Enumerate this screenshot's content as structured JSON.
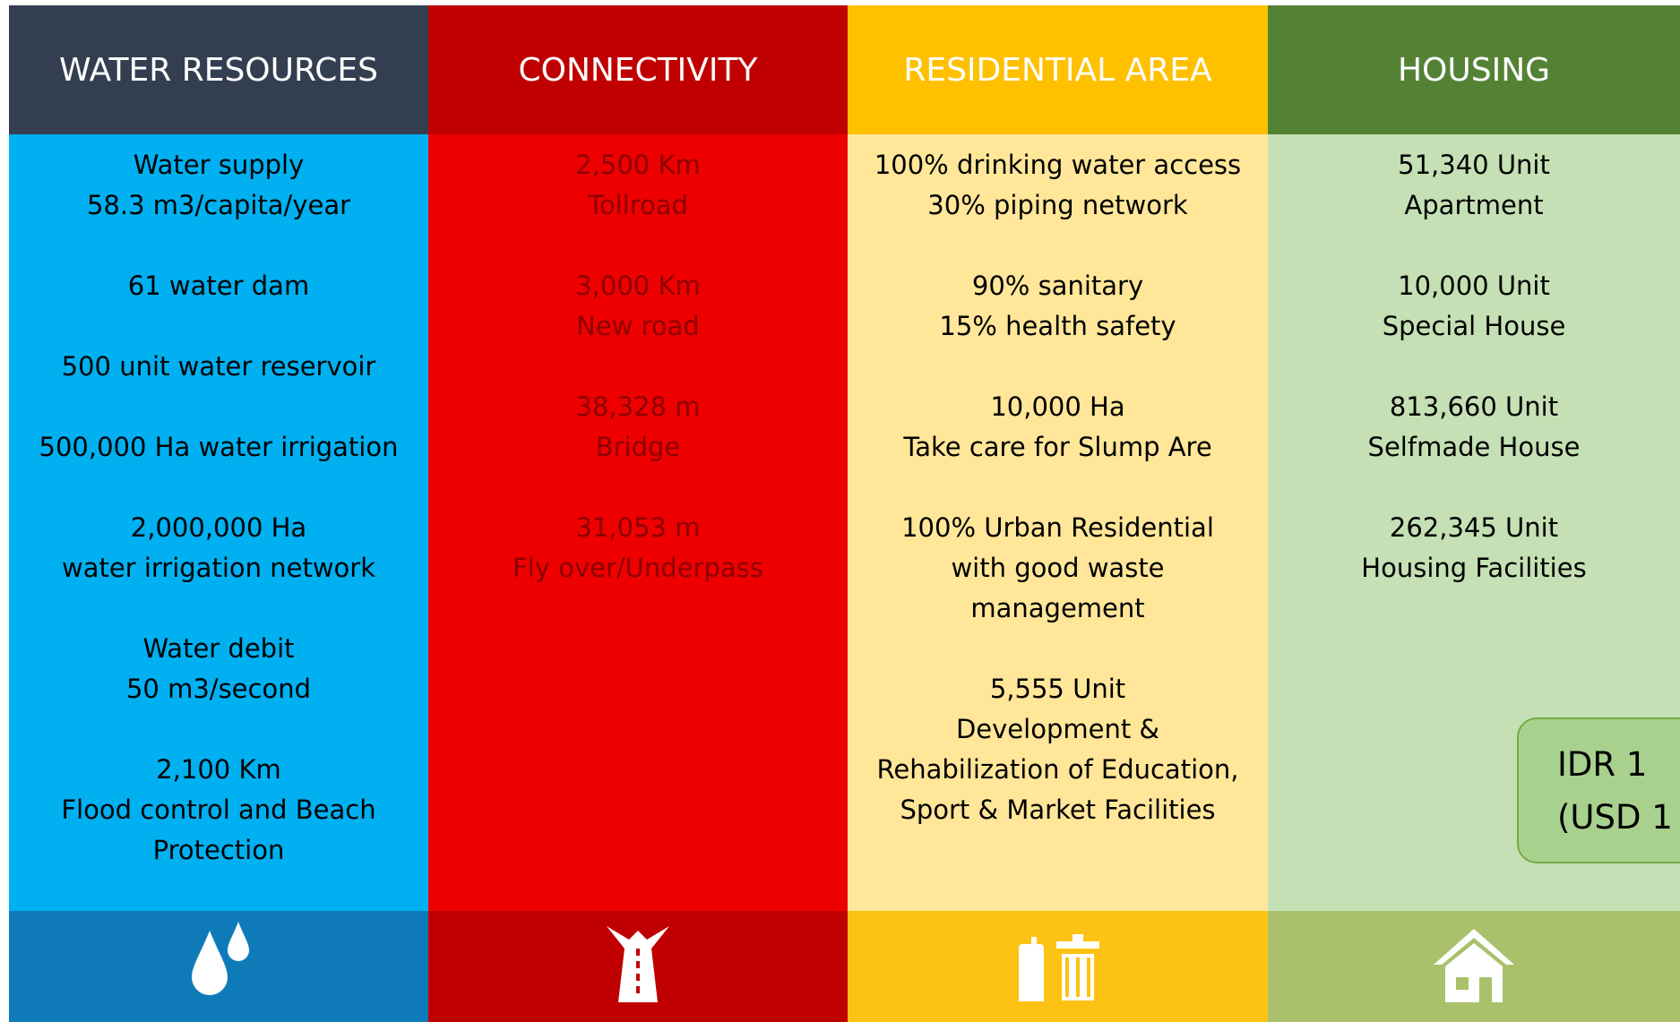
{
  "columns": [
    {
      "title": "WATER RESOURCES",
      "items": [
        [
          "Water supply",
          "58.3 m3/capita/year"
        ],
        [
          "61 water dam"
        ],
        [
          "500 unit water reservoir"
        ],
        [
          "500,000 Ha water irrigation"
        ],
        [
          "2,000,000 Ha",
          "water irrigation network"
        ],
        [
          "Water debit",
          "50 m3/second"
        ],
        [
          "2,100 Km",
          "Flood control and Beach",
          "Protection"
        ]
      ]
    },
    {
      "title": "CONNECTIVITY",
      "items": [
        [
          "2,500 Km",
          "Tollroad"
        ],
        [
          "3,000 Km",
          "New road"
        ],
        [
          "38,328 m",
          "Bridge"
        ],
        [
          "31,053 m",
          "Fly over/Underpass"
        ]
      ]
    },
    {
      "title": "RESIDENTIAL AREA",
      "items": [
        [
          "100% drinking water access",
          "30% piping network"
        ],
        [
          "90% sanitary",
          "15% health safety"
        ],
        [
          "10,000 Ha",
          "Take care for Slump Are"
        ],
        [
          "100% Urban Residential",
          "with good waste",
          "management"
        ],
        [
          "5,555 Unit",
          "Development &",
          "Rehabilization of Education,",
          "Sport & Market Facilities"
        ]
      ]
    },
    {
      "title": "HOUSING",
      "items": [
        [
          "51,340 Unit",
          "Apartment"
        ],
        [
          "10,000 Unit",
          "Special House"
        ],
        [
          "813,660 Unit",
          "Selfmade House"
        ],
        [
          "262,345 Unit",
          "Housing Facilities"
        ]
      ]
    }
  ],
  "budget": [
    "IDR 1",
    "(USD 1"
  ]
}
